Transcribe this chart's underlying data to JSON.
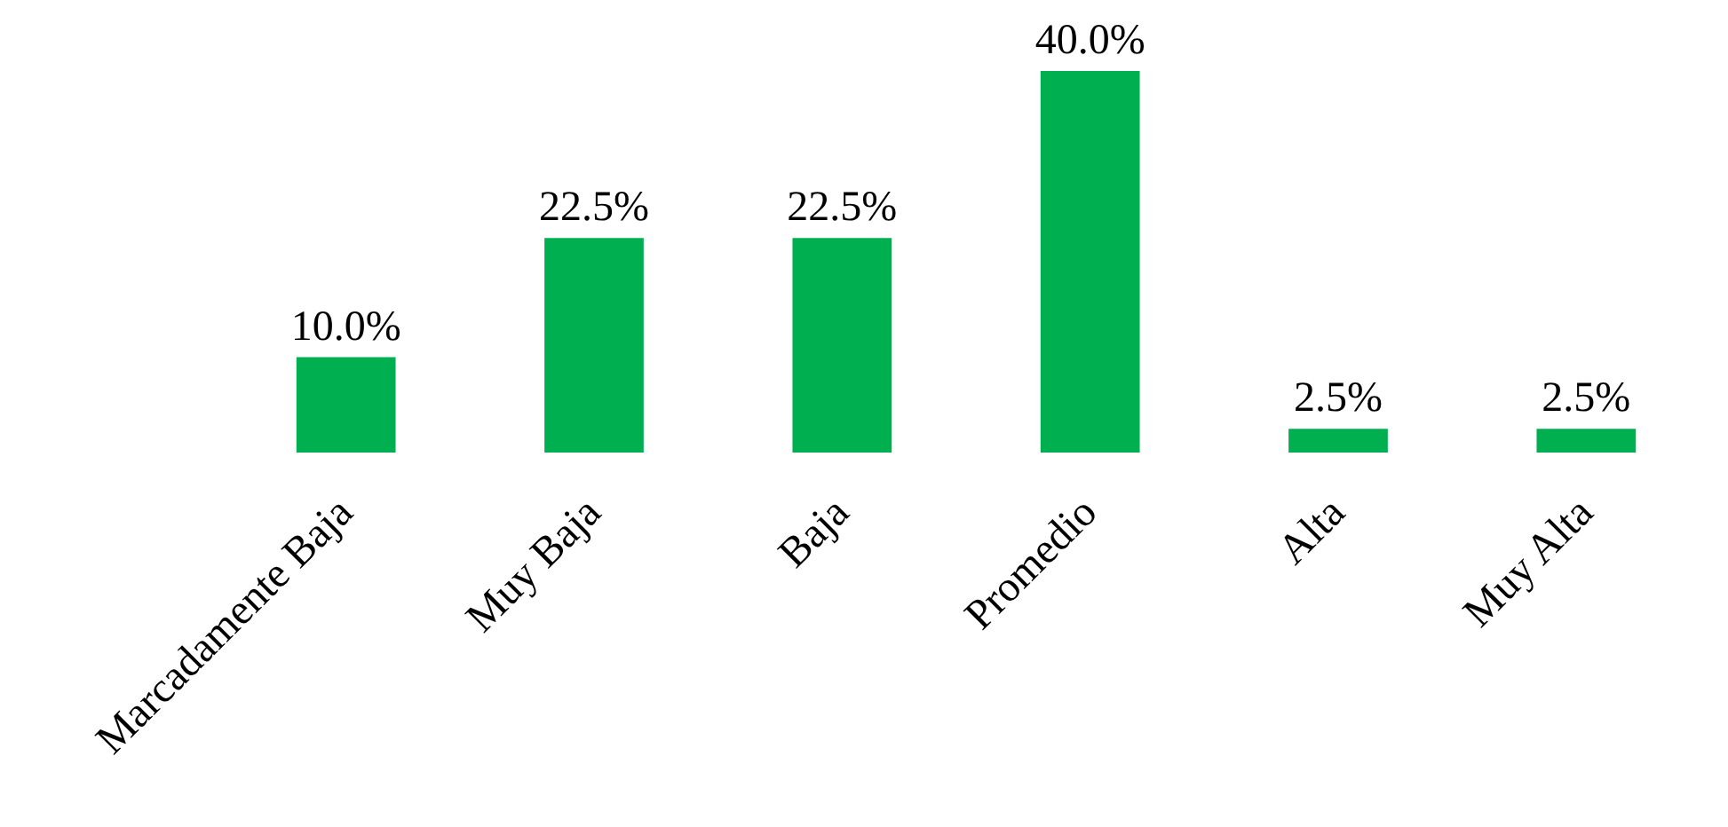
{
  "chart_data": {
    "type": "bar",
    "categories": [
      "Marcadamente Baja",
      "Muy Baja",
      "Baja",
      "Promedio",
      "Alta",
      "Muy Alta"
    ],
    "values": [
      10.0,
      22.5,
      22.5,
      40.0,
      2.5,
      2.5
    ],
    "value_labels": [
      "10.0%",
      "22.5%",
      "22.5%",
      "40.0%",
      "2.5%",
      "2.5%"
    ],
    "color": "#00b050"
  }
}
